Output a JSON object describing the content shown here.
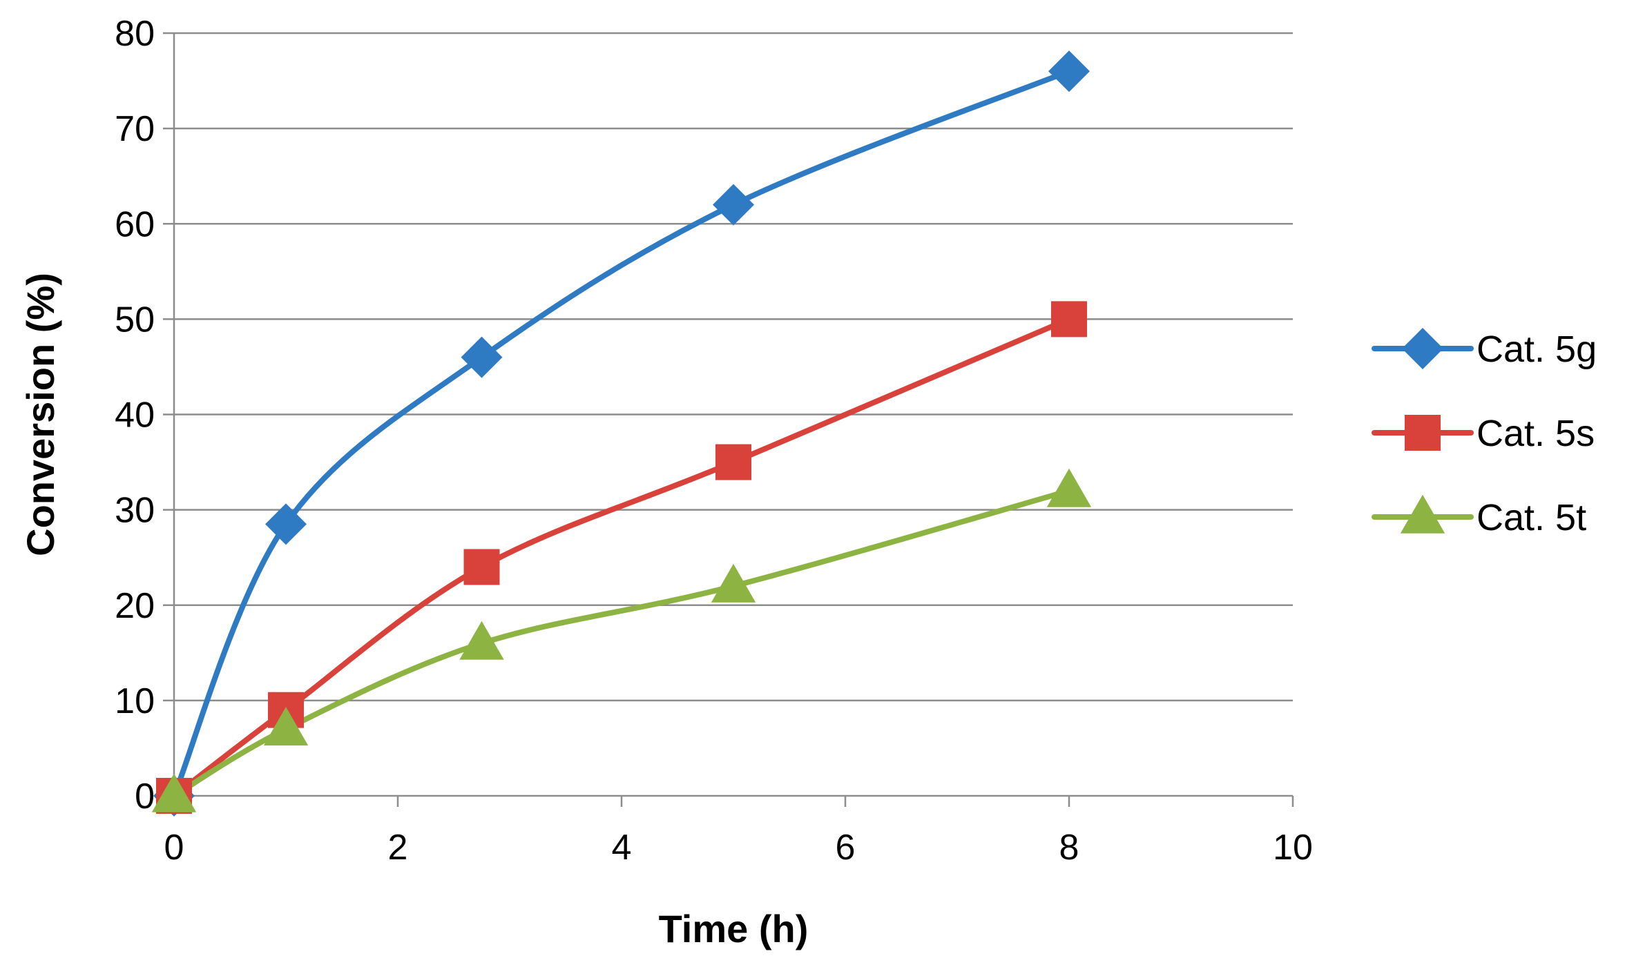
{
  "chart_data": {
    "type": "line",
    "title": "",
    "xlabel": "Time (h)",
    "ylabel": "Conversion (%)",
    "xlim": [
      0,
      10
    ],
    "ylim": [
      0,
      80
    ],
    "xticks": [
      0,
      2,
      4,
      6,
      8,
      10
    ],
    "yticks": [
      0,
      10,
      20,
      30,
      40,
      50,
      60,
      70,
      80
    ],
    "grid": "horizontal",
    "smooth": true,
    "legend_position": "right",
    "series": [
      {
        "name": "Cat. 5g",
        "color": "#2E7BC4",
        "marker": "diamond",
        "x": [
          0,
          1,
          2.75,
          5,
          8
        ],
        "values": [
          0,
          28.5,
          46,
          62,
          76
        ]
      },
      {
        "name": "Cat. 5s",
        "color": "#D9423B",
        "marker": "square",
        "x": [
          0,
          1,
          2.75,
          5,
          8
        ],
        "values": [
          0,
          9,
          24,
          35,
          50
        ]
      },
      {
        "name": "Cat. 5t",
        "color": "#8DB443",
        "marker": "triangle",
        "x": [
          0,
          1,
          2.75,
          5,
          8
        ],
        "values": [
          0,
          7,
          16,
          22,
          32
        ]
      }
    ]
  }
}
